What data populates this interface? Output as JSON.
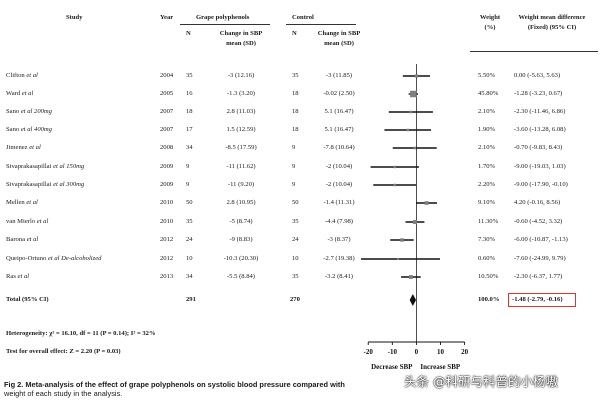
{
  "header": {
    "study": "Study",
    "year": "Year",
    "treatment_group": "Grape polyphenols",
    "control_group": "Control",
    "n": "N",
    "change_sbp_l1": "Change in SBP",
    "change_sbp_l2": "mean (SD)",
    "weight_l1": "Weight",
    "weight_l2": "(%)",
    "wmd_l1": "Weight mean difference",
    "wmd_l2": "(Fixed) (95% CI)"
  },
  "studies": [
    {
      "name": "Clifton",
      "suffix": " et al",
      "year": "2004",
      "n1": "35",
      "m1": "-3 (12.16)",
      "n2": "35",
      "m2": "-3 (11.85)",
      "weight": "5.50%",
      "wmd": "0.00 (-5.63, 5.63)"
    },
    {
      "name": "Ward",
      "suffix": " et al",
      "year": "2005",
      "n1": "16",
      "m1": "-1.3 (3.20)",
      "n2": "18",
      "m2": "-0.02 (2.50)",
      "weight": "45.80%",
      "wmd": "-1.28 (-3.23, 0.67)"
    },
    {
      "name": "Sano",
      "suffix": " et al 200mg",
      "year": "2007",
      "n1": "18",
      "m1": "2.8 (11.03)",
      "n2": "18",
      "m2": "5.1 (16.47)",
      "weight": "2.10%",
      "wmd": "-2.30 (-11.46, 6.86)"
    },
    {
      "name": "Sano",
      "suffix": " et al 400mg",
      "year": "2007",
      "n1": "17",
      "m1": "1.5 (12.59)",
      "n2": "18",
      "m2": "5.1 (16.47)",
      "weight": "1.90%",
      "wmd": "-3.60 (-13.28, 6.08)"
    },
    {
      "name": "Jimenez",
      "suffix": " et al",
      "year": "2008",
      "n1": "34",
      "m1": "-8.5 (17.59)",
      "n2": "9",
      "m2": "-7.8 (10.64)",
      "weight": "2.10%",
      "wmd": "-0.70 (-9.83, 8.43)"
    },
    {
      "name": "Sivaprakasapillai",
      "suffix": " et al 150mg",
      "year": "2009",
      "n1": "9",
      "m1": "-11 (11.62)",
      "n2": "9",
      "m2": "-2 (10.04)",
      "weight": "1.70%",
      "wmd": "-9.00 (-19.03, 1.03)"
    },
    {
      "name": "Sivaprakasapillai",
      "suffix": " et al 300mg",
      "year": "2009",
      "n1": "9",
      "m1": "-11 (9.20)",
      "n2": "9",
      "m2": "-2 (10.04)",
      "weight": "2.20%",
      "wmd": "-9.00 (-17.90, -0.10)"
    },
    {
      "name": "Mellen",
      "suffix": " et al",
      "year": "2010",
      "n1": "50",
      "m1": "2.8 (10.95)",
      "n2": "50",
      "m2": "-1.4 (11.31)",
      "weight": "9.10%",
      "wmd": "4.20 (-0.16, 8.56)"
    },
    {
      "name": "van Mierlo",
      "suffix": " et al",
      "year": "2010",
      "n1": "35",
      "m1": "-5 (8.74)",
      "n2": "35",
      "m2": "-4.4 (7.98)",
      "weight": "11.30%",
      "wmd": "-0.60 (-4.52, 3.32)"
    },
    {
      "name": "Barona",
      "suffix": " et al",
      "year": "2012",
      "n1": "24",
      "m1": "-9 (8.83)",
      "n2": "24",
      "m2": "-3 (8.37)",
      "weight": "7.30%",
      "wmd": "-6.00 (-10.87, -1.13)"
    },
    {
      "name": "Queipo-Ortuno",
      "suffix": " et al De-alcoholized",
      "year": "2012",
      "n1": "10",
      "m1": "-10.3 (20.30)",
      "n2": "10",
      "m2": "-2.7 (19.38)",
      "weight": "0.60%",
      "wmd": "-7.60 (-24.99, 9.79)"
    },
    {
      "name": "Ras",
      "suffix": " et al",
      "year": "2013",
      "n1": "34",
      "m1": "-5.5 (8.84)",
      "n2": "35",
      "m2": "-3.2 (8.41)",
      "weight": "10.50%",
      "wmd": "-2.30 (-6.37, 1.77)"
    }
  ],
  "total": {
    "label": "Total (95% CI)",
    "n1": "291",
    "n2": "270",
    "weight": "100.0%",
    "wmd": "-1.48 (-2.79, -0.16)"
  },
  "stats": {
    "heterogeneity": "Heterogeneity: χ² = 16.10, df = 11 (P = 0.14); I² = 32%",
    "overall_effect": "Test for overall effect: Z = 2.20 (P = 0.03)"
  },
  "axis": {
    "ticks": [
      -20,
      -10,
      0,
      10,
      20
    ],
    "xlim": [
      -23,
      21
    ],
    "left_label": "Decrease SBP",
    "right_label": "Increase SBP"
  },
  "caption": {
    "lead": "Fig 2. Meta-analysis of the effect of grape polyphenols on systolic blood pressure compared with",
    "continuation": "weight of each study in the analysis."
  },
  "watermark": "头条 @科研与科普的小杨嗷",
  "colors": {
    "highlight_box": "#e0322f",
    "marker": "#7f7f7f",
    "line": "#111111"
  },
  "chart_data": {
    "type": "forest",
    "estimate": "weighted mean difference in SBP",
    "xlim": [
      -23,
      21
    ],
    "ticks": [
      -20,
      -10,
      0,
      10,
      20
    ],
    "reference_line": 0,
    "points": [
      {
        "study": "Clifton et al",
        "mean": 0.0,
        "lower": -5.63,
        "upper": 5.63,
        "weight": 5.5
      },
      {
        "study": "Ward et al",
        "mean": -1.28,
        "lower": -3.23,
        "upper": 0.67,
        "weight": 45.8
      },
      {
        "study": "Sano et al 200mg",
        "mean": -2.3,
        "lower": -11.46,
        "upper": 6.86,
        "weight": 2.1
      },
      {
        "study": "Sano et al 400mg",
        "mean": -3.6,
        "lower": -13.28,
        "upper": 6.08,
        "weight": 1.9
      },
      {
        "study": "Jimenez et al",
        "mean": -0.7,
        "lower": -9.83,
        "upper": 8.43,
        "weight": 2.1
      },
      {
        "study": "Sivaprakasapillai et al 150mg",
        "mean": -9.0,
        "lower": -19.03,
        "upper": 1.03,
        "weight": 1.7
      },
      {
        "study": "Sivaprakasapillai et al 300mg",
        "mean": -9.0,
        "lower": -17.9,
        "upper": -0.1,
        "weight": 2.2
      },
      {
        "study": "Mellen et al",
        "mean": 4.2,
        "lower": -0.16,
        "upper": 8.56,
        "weight": 9.1
      },
      {
        "study": "van Mierlo et al",
        "mean": -0.6,
        "lower": -4.52,
        "upper": 3.32,
        "weight": 11.3
      },
      {
        "study": "Barona et al",
        "mean": -6.0,
        "lower": -10.87,
        "upper": -1.13,
        "weight": 7.3
      },
      {
        "study": "Queipo-Ortuno et al De-alcoholized",
        "mean": -7.6,
        "lower": -24.99,
        "upper": 9.79,
        "weight": 0.6
      },
      {
        "study": "Ras et al",
        "mean": -2.3,
        "lower": -6.37,
        "upper": 1.77,
        "weight": 10.5
      }
    ],
    "pooled": {
      "mean": -1.48,
      "lower": -2.79,
      "upper": -0.16,
      "weight": 100.0
    }
  }
}
